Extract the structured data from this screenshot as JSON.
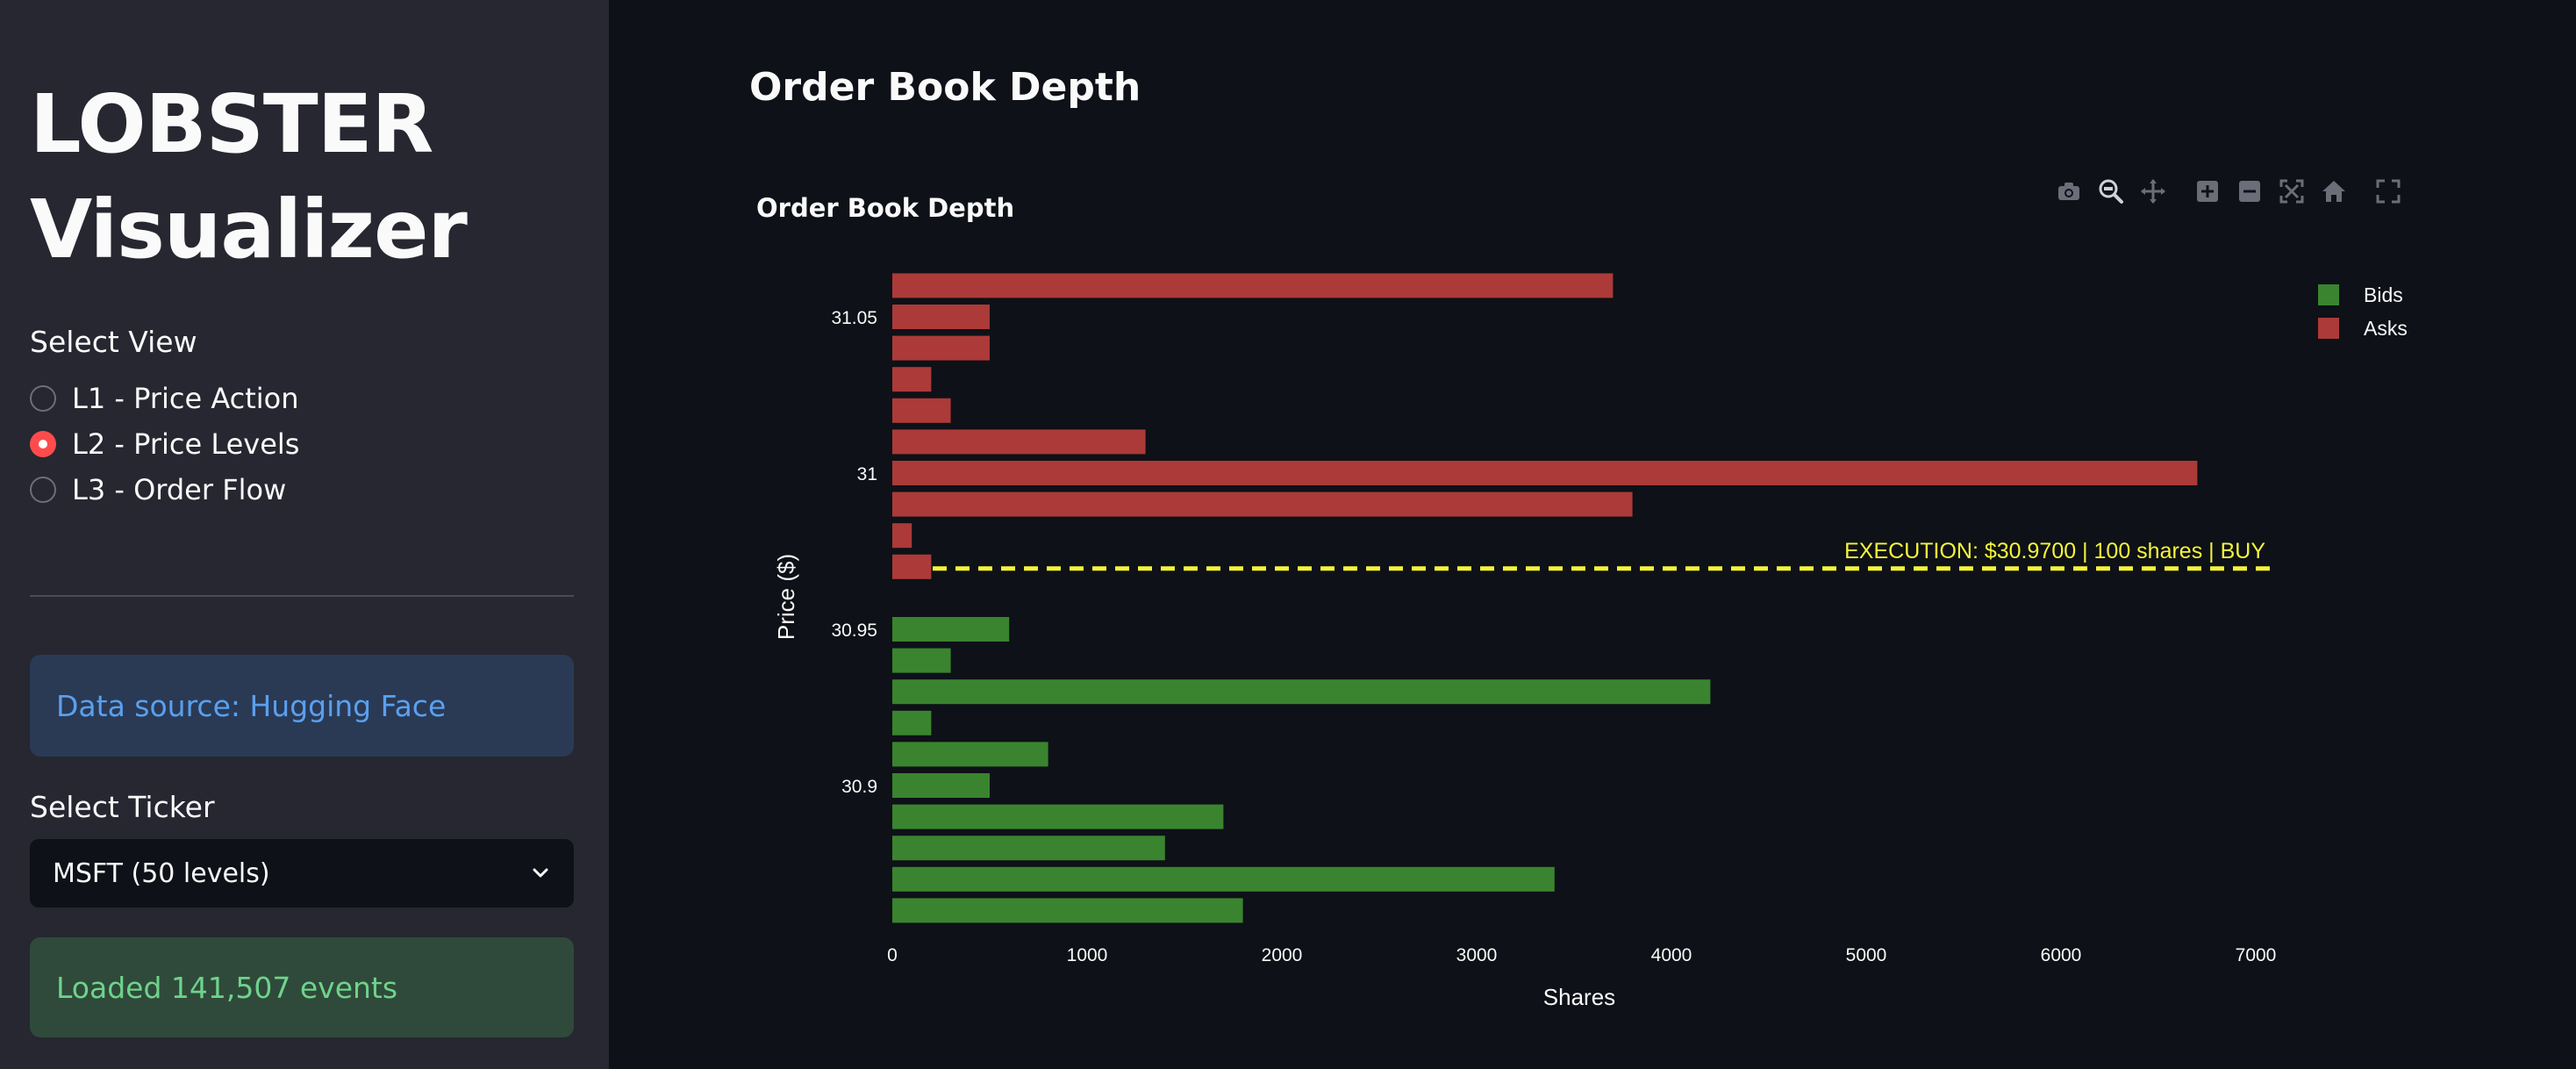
{
  "sidebar": {
    "app_title_line1": "LOBSTER",
    "app_title_line2": "Visualizer",
    "view_label": "Select View",
    "views": [
      {
        "label": "L1 - Price Action",
        "selected": false
      },
      {
        "label": "L2 - Price Levels",
        "selected": true
      },
      {
        "label": "L3 - Order Flow",
        "selected": false
      }
    ],
    "data_source": "Data source: Hugging Face",
    "ticker_label": "Select Ticker",
    "ticker_value": "MSFT (50 levels)",
    "status": "Loaded 141,507 events"
  },
  "main": {
    "title": "Order Book Depth"
  },
  "toolbar": [
    "camera-icon",
    "zoom-icon",
    "pan-icon",
    "zoom-in-icon",
    "zoom-out-icon",
    "autoscale-icon",
    "reset-axes-icon",
    "fullscreen-icon"
  ],
  "colors": {
    "bids": "#3a842f",
    "asks": "#ac3a39",
    "execution": "#f5f53b",
    "accent": "#ff4b4b"
  },
  "chart_data": {
    "type": "bar",
    "orientation": "horizontal",
    "title": "Order Book Depth",
    "xlabel": "Shares",
    "ylabel": "Price ($)",
    "xlim": [
      0,
      7000
    ],
    "x_ticks": [
      0,
      1000,
      2000,
      3000,
      4000,
      5000,
      6000,
      7000
    ],
    "y_ticks": [
      {
        "value": 31.05,
        "label": "31.05"
      },
      {
        "value": 31.0,
        "label": "31"
      },
      {
        "value": 30.95,
        "label": "30.95"
      },
      {
        "value": 30.9,
        "label": "30.9"
      }
    ],
    "legend_position": "top-right",
    "series": [
      {
        "name": "Asks",
        "prices": [
          31.06,
          31.05,
          31.04,
          31.03,
          31.02,
          31.01,
          31.0,
          30.99,
          30.98,
          30.97
        ],
        "values": [
          3700,
          500,
          500,
          200,
          300,
          1300,
          6700,
          3800,
          100,
          200
        ]
      },
      {
        "name": "Bids",
        "prices": [
          30.95,
          30.94,
          30.93,
          30.92,
          30.91,
          30.9,
          30.89,
          30.88,
          30.87,
          30.86
        ],
        "values": [
          600,
          300,
          4200,
          200,
          800,
          500,
          1700,
          1400,
          3400,
          1800
        ]
      }
    ],
    "annotation": {
      "text": "EXECUTION: $30.9700 | 100 shares | BUY",
      "price": 30.97
    }
  }
}
